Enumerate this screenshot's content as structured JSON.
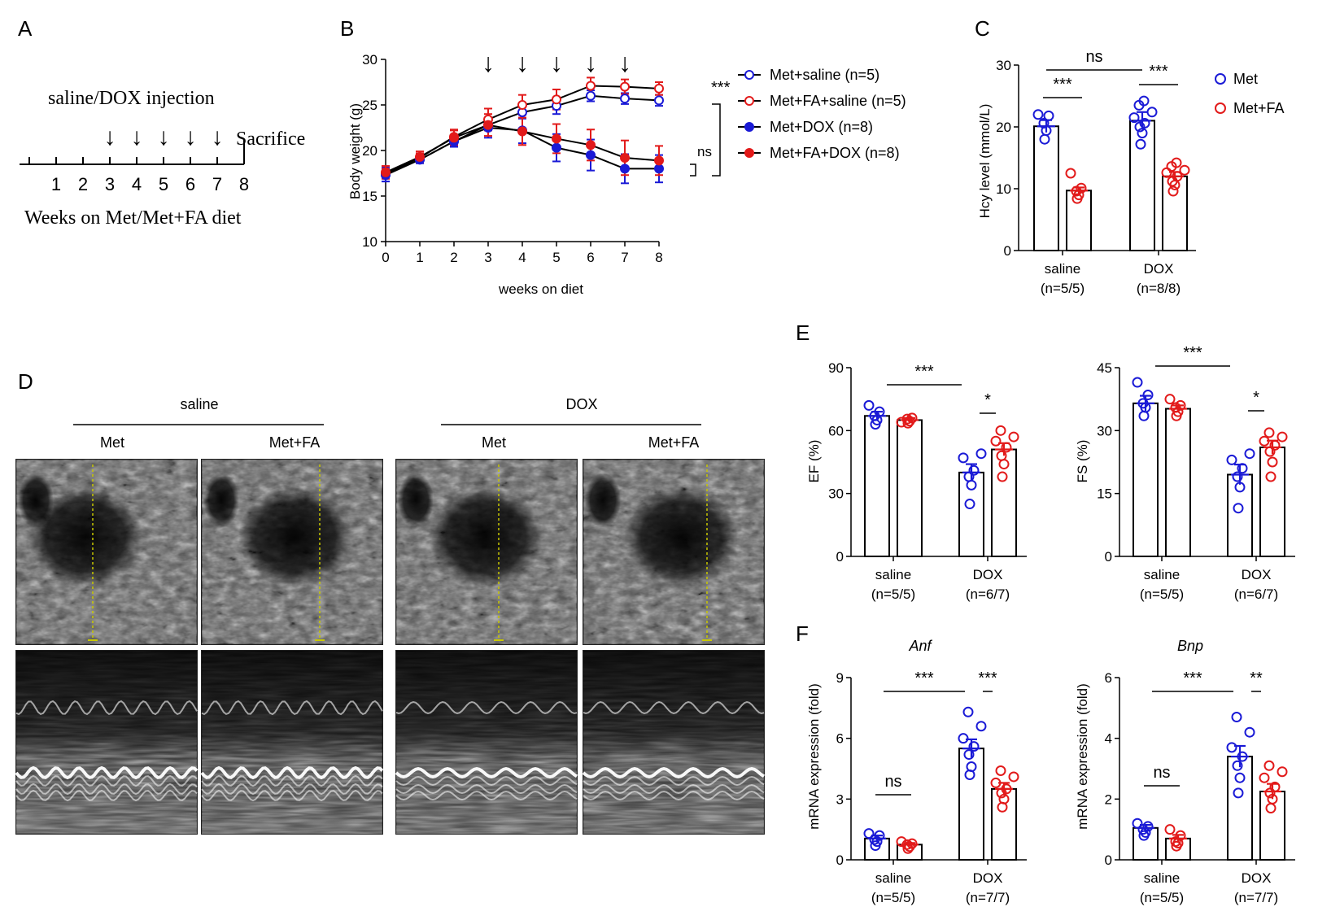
{
  "panel_letters": {
    "A": "A",
    "B": "B",
    "C": "C",
    "D": "D",
    "E": "E",
    "F": "F"
  },
  "colors": {
    "met": "#1a1ad6",
    "metfa": "#e21a1a",
    "black": "#000000"
  },
  "timeline": {
    "header": "saline/DOX injection",
    "end_label": "Sacrifice",
    "footer": "Weeks on Met/Met+FA diet",
    "ticks": [
      "1",
      "2",
      "3",
      "4",
      "5",
      "6",
      "7",
      "8"
    ],
    "injection_weeks": [
      3,
      4,
      5,
      6,
      7
    ],
    "arrow_glyph": "↓"
  },
  "chart_data": [
    {
      "id": "B",
      "type": "line",
      "title": "",
      "xlabel": "weeks on diet",
      "ylabel": "Body weight (g)",
      "x": [
        0,
        1,
        2,
        3,
        4,
        5,
        6,
        7,
        8
      ],
      "xticks": [
        "0",
        "1",
        "2",
        "3",
        "4",
        "5",
        "6",
        "7",
        "8"
      ],
      "yticks": [
        "10",
        "15",
        "20",
        "25",
        "30"
      ],
      "ylim": [
        10,
        30
      ],
      "injection_weeks": [
        3,
        4,
        5,
        6,
        7
      ],
      "series": [
        {
          "name": "Met+saline (n=5)",
          "color": "#1a1ad6",
          "filled": false,
          "values": [
            17.3,
            19.0,
            21.0,
            22.8,
            24.2,
            24.9,
            26.0,
            25.7,
            25.5
          ],
          "errors": [
            0.7,
            0.4,
            0.5,
            0.6,
            0.7,
            0.9,
            0.6,
            0.6,
            0.6
          ]
        },
        {
          "name": "Met+FA+saline (n=5)",
          "color": "#e21a1a",
          "filled": false,
          "values": [
            17.5,
            19.2,
            21.5,
            23.4,
            25.0,
            25.6,
            27.1,
            27.0,
            26.8
          ],
          "errors": [
            0.6,
            0.5,
            0.8,
            1.2,
            1.1,
            1.1,
            0.9,
            0.8,
            0.7
          ]
        },
        {
          "name": "Met+DOX (n=8)",
          "color": "#1a1ad6",
          "filled": true,
          "values": [
            17.4,
            19.0,
            21.0,
            22.5,
            22.2,
            20.3,
            19.5,
            18.0,
            18.0
          ],
          "errors": [
            0.8,
            0.4,
            0.6,
            1.1,
            1.4,
            1.5,
            1.7,
            1.6,
            1.5
          ]
        },
        {
          "name": "Met+FA+DOX (n=8)",
          "color": "#e21a1a",
          "filled": true,
          "values": [
            17.6,
            19.3,
            21.4,
            22.8,
            22.1,
            21.3,
            20.6,
            19.2,
            18.9
          ],
          "errors": [
            0.7,
            0.6,
            0.8,
            1.2,
            1.5,
            1.6,
            1.7,
            1.9,
            1.6
          ]
        }
      ],
      "annotations": {
        "saline_vs_dox": "***",
        "fa_vs_met_dox": "ns"
      }
    },
    {
      "id": "C",
      "type": "bar",
      "ylabel": "Hcy level (mmol/L)",
      "categories": [
        "saline",
        "DOX"
      ],
      "category_n": [
        "(n=5/5)",
        "(n=8/8)"
      ],
      "yticks": [
        "0",
        "10",
        "20",
        "30"
      ],
      "ylim": [
        0,
        30
      ],
      "series": [
        {
          "name": "Met",
          "color": "#1a1ad6",
          "values": [
            20.1,
            21.0
          ],
          "errors": [
            1.0,
            1.4
          ],
          "points": [
            [
              18.0,
              19.4,
              20.6,
              21.8,
              22.0
            ],
            [
              17.2,
              19.0,
              20.0,
              20.6,
              21.5,
              22.4,
              23.5,
              24.2
            ]
          ]
        },
        {
          "name": "Met+FA",
          "color": "#e21a1a",
          "values": [
            9.7,
            12.0
          ],
          "errors": [
            0.5,
            0.7
          ],
          "points": [
            [
              8.4,
              9.0,
              9.6,
              10.1,
              12.5
            ],
            [
              9.6,
              10.6,
              11.2,
              12.0,
              12.6,
              13.0,
              13.6,
              14.2
            ]
          ]
        }
      ],
      "legend": [
        "Met",
        "Met+FA"
      ],
      "annotations": {
        "saline_pair": "***",
        "dox_pair": "***",
        "met_cross": "ns"
      }
    },
    {
      "id": "E1",
      "type": "bar",
      "ylabel": "EF (%)",
      "categories": [
        "saline",
        "DOX"
      ],
      "category_n": [
        "(n=5/5)",
        "(n=6/7)"
      ],
      "yticks": [
        "0",
        "30",
        "60",
        "90"
      ],
      "ylim": [
        0,
        90
      ],
      "series": [
        {
          "name": "Met",
          "color": "#1a1ad6",
          "values": [
            67,
            40
          ],
          "errors": [
            2,
            4
          ],
          "points": [
            [
              63,
              65,
              67,
              69,
              72
            ],
            [
              25,
              34,
              38,
              41,
              47,
              49
            ]
          ]
        },
        {
          "name": "Met+FA",
          "color": "#e21a1a",
          "values": [
            65,
            51
          ],
          "errors": [
            1,
            3
          ],
          "points": [
            [
              63.5,
              64.5,
              65.5,
              66,
              64
            ],
            [
              38,
              44,
              48,
              52,
              55,
              57,
              60
            ]
          ]
        }
      ],
      "annotations": {
        "met_cross": "***",
        "dox_pair": "*"
      }
    },
    {
      "id": "E2",
      "type": "bar",
      "ylabel": "FS (%)",
      "categories": [
        "saline",
        "DOX"
      ],
      "category_n": [
        "(n=5/5)",
        "(n=6/7)"
      ],
      "yticks": [
        "0",
        "15",
        "30",
        "45"
      ],
      "ylim": [
        0,
        45
      ],
      "series": [
        {
          "name": "Met",
          "color": "#1a1ad6",
          "values": [
            36.5,
            19.5
          ],
          "errors": [
            1.8,
            2.4
          ],
          "points": [
            [
              33.5,
              35.5,
              36.5,
              38.5,
              41.5
            ],
            [
              11.5,
              16.5,
              19,
              21,
              23,
              24.5
            ]
          ]
        },
        {
          "name": "Met+FA",
          "color": "#e21a1a",
          "values": [
            35.2,
            26
          ],
          "errors": [
            0.8,
            1.6
          ],
          "points": [
            [
              33.5,
              34.5,
              35.5,
              36.0,
              37.5
            ],
            [
              19,
              22.5,
              25,
              26.5,
              27.5,
              28.5,
              29.5
            ]
          ]
        }
      ],
      "annotations": {
        "met_cross": "***",
        "dox_pair": "*"
      }
    },
    {
      "id": "F1",
      "type": "bar",
      "title": "Anf",
      "ylabel": "mRNA expression (fold)",
      "categories": [
        "saline",
        "DOX"
      ],
      "category_n": [
        "(n=5/5)",
        "(n=7/7)"
      ],
      "yticks": [
        "0",
        "3",
        "6",
        "9"
      ],
      "ylim": [
        0,
        9
      ],
      "series": [
        {
          "name": "Met",
          "color": "#1a1ad6",
          "values": [
            1.05,
            5.5
          ],
          "errors": [
            0.15,
            0.45
          ],
          "points": [
            [
              0.7,
              0.9,
              1.0,
              1.2,
              1.3
            ],
            [
              4.2,
              4.6,
              5.2,
              5.6,
              6.0,
              6.6,
              7.3
            ]
          ]
        },
        {
          "name": "Met+FA",
          "color": "#e21a1a",
          "values": [
            0.75,
            3.5
          ],
          "errors": [
            0.08,
            0.3
          ],
          "points": [
            [
              0.55,
              0.65,
              0.75,
              0.8,
              0.9
            ],
            [
              2.6,
              3.0,
              3.3,
              3.5,
              3.8,
              4.1,
              4.4
            ]
          ]
        }
      ],
      "annotations": {
        "saline_pair": "ns",
        "met_cross": "***",
        "dox_pair": "***"
      }
    },
    {
      "id": "F2",
      "type": "bar",
      "title": "Bnp",
      "ylabel": "mRNA expression (fold)",
      "categories": [
        "saline",
        "DOX"
      ],
      "category_n": [
        "(n=5/5)",
        "(n=7/7)"
      ],
      "yticks": [
        "0",
        "2",
        "4",
        "6"
      ],
      "ylim": [
        0,
        6
      ],
      "series": [
        {
          "name": "Met",
          "color": "#1a1ad6",
          "values": [
            1.05,
            3.4
          ],
          "errors": [
            0.1,
            0.35
          ],
          "points": [
            [
              0.8,
              0.9,
              1.0,
              1.1,
              1.2
            ],
            [
              2.2,
              2.7,
              3.1,
              3.4,
              3.7,
              4.2,
              4.7
            ]
          ]
        },
        {
          "name": "Met+FA",
          "color": "#e21a1a",
          "values": [
            0.7,
            2.25
          ],
          "errors": [
            0.12,
            0.25
          ],
          "points": [
            [
              0.45,
              0.55,
              0.6,
              0.8,
              1.0
            ],
            [
              1.7,
              2.0,
              2.2,
              2.4,
              2.7,
              2.9,
              3.1
            ]
          ]
        }
      ],
      "annotations": {
        "saline_pair": "ns",
        "met_cross": "***",
        "dox_pair": "**"
      }
    }
  ],
  "echo": {
    "group_labels": [
      "saline",
      "DOX"
    ],
    "column_labels": [
      "Met",
      "Met+FA",
      "Met",
      "Met+FA"
    ]
  }
}
